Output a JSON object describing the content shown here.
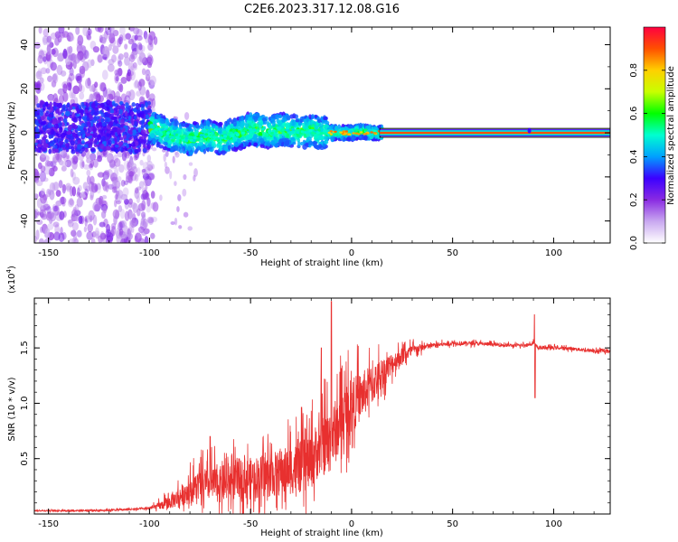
{
  "figure_title": "C2E6.2023.317.12.08.G16",
  "chart_data": [
    {
      "type": "heatmap",
      "xlabel": "Height of straight line (km)",
      "ylabel": "Frequency (Hz)",
      "xlim": [
        -157,
        128
      ],
      "ylim": [
        -50,
        48
      ],
      "xticks": [
        "-150",
        "-100",
        "-50",
        "0",
        "50",
        "100"
      ],
      "xtick_values": [
        -150,
        -100,
        -50,
        0,
        50,
        100
      ],
      "yticks": [
        "-40",
        "-20",
        "0",
        "20",
        "40"
      ],
      "ytick_values": [
        -40,
        -20,
        0,
        20,
        40
      ],
      "colormap": [
        "#ffffff",
        "#c9a8f0",
        "#8a2be2",
        "#3b00ff",
        "#00a0ff",
        "#00ffd0",
        "#00ff00",
        "#c8ff00",
        "#ffd000",
        "#ff5000",
        "#ff0040"
      ],
      "colorbar": {
        "label": "Normalized spectral amplitude",
        "range": [
          0,
          1
        ],
        "ticks": [
          "0.0",
          "0.2",
          "0.4",
          "0.6",
          "0.8"
        ],
        "tick_values": [
          0.0,
          0.2,
          0.4,
          0.6,
          0.8
        ]
      },
      "ridge": {
        "x": [
          -157,
          -140,
          -120,
          -105,
          -100,
          -95,
          -90,
          -85,
          -80,
          -75,
          -70,
          -65,
          -60,
          -55,
          -50,
          -45,
          -40,
          -35,
          -30,
          -25,
          -20,
          -15,
          -12,
          -8,
          0,
          5,
          10,
          15,
          128
        ],
        "y": [
          3,
          2,
          3,
          2,
          3,
          1,
          -1,
          -2,
          -3,
          -2,
          -1,
          -3,
          -1,
          0,
          2,
          1,
          0,
          2,
          1,
          0,
          1,
          0,
          0,
          0,
          0,
          1,
          0,
          0,
          0
        ]
      },
      "steady_line": {
        "x_start": 14,
        "x_end": 128,
        "y": 0,
        "band_half_width": 2
      }
    },
    {
      "type": "line",
      "xlabel": "Height of straight line (km)",
      "ylabel": "SNR (10 * v/v)",
      "y_multiplier": "(x10",
      "y_multiplier_exp": "4",
      "y_multiplier_close": ")",
      "xlim": [
        -157,
        128
      ],
      "ylim": [
        0.0,
        1.95
      ],
      "xticks": [
        "-150",
        "-100",
        "-50",
        "0",
        "50",
        "100"
      ],
      "xtick_values": [
        -150,
        -100,
        -50,
        0,
        50,
        100
      ],
      "yticks": [
        "0.5",
        "1.0",
        "1.5"
      ],
      "ytick_values": [
        0.5,
        1.0,
        1.5
      ],
      "color": "#e8302f",
      "envelope": {
        "x": [
          -157,
          -130,
          -110,
          -100,
          -95,
          -90,
          -85,
          -80,
          -75,
          -70,
          -65,
          -60,
          -55,
          -50,
          -45,
          -40,
          -35,
          -30,
          -25,
          -20,
          -17,
          -14,
          -12,
          -10,
          -7,
          -4,
          0,
          5,
          10,
          15,
          20,
          25,
          30,
          35,
          40,
          50,
          60,
          70,
          80,
          85,
          88,
          90,
          92,
          95,
          100,
          110,
          120,
          128
        ],
        "y": [
          0.03,
          0.03,
          0.04,
          0.05,
          0.07,
          0.1,
          0.15,
          0.2,
          0.25,
          0.25,
          0.25,
          0.28,
          0.3,
          0.3,
          0.32,
          0.33,
          0.35,
          0.38,
          0.4,
          0.45,
          0.55,
          0.6,
          0.6,
          0.65,
          0.75,
          0.85,
          0.95,
          1.05,
          1.15,
          1.25,
          1.35,
          1.42,
          1.47,
          1.5,
          1.52,
          1.54,
          1.54,
          1.53,
          1.52,
          1.52,
          1.53,
          1.55,
          1.5,
          1.5,
          1.5,
          1.49,
          1.47,
          1.47
        ]
      },
      "noise_amplitude": {
        "x": [
          -157,
          -100,
          -90,
          -80,
          -60,
          -40,
          -20,
          -10,
          0,
          10,
          20,
          30,
          40,
          80,
          128
        ],
        "y": [
          0.005,
          0.01,
          0.06,
          0.12,
          0.18,
          0.2,
          0.25,
          0.3,
          0.25,
          0.18,
          0.1,
          0.05,
          0.02,
          0.015,
          0.015
        ]
      },
      "spikes": [
        {
          "x": -10,
          "y": 1.92
        },
        {
          "x": -15,
          "y": 1.5
        },
        {
          "x": -70,
          "y": 0.7
        },
        {
          "x": 90.5,
          "y": 1.8
        },
        {
          "x": 90.8,
          "y": 1.05
        }
      ]
    }
  ]
}
